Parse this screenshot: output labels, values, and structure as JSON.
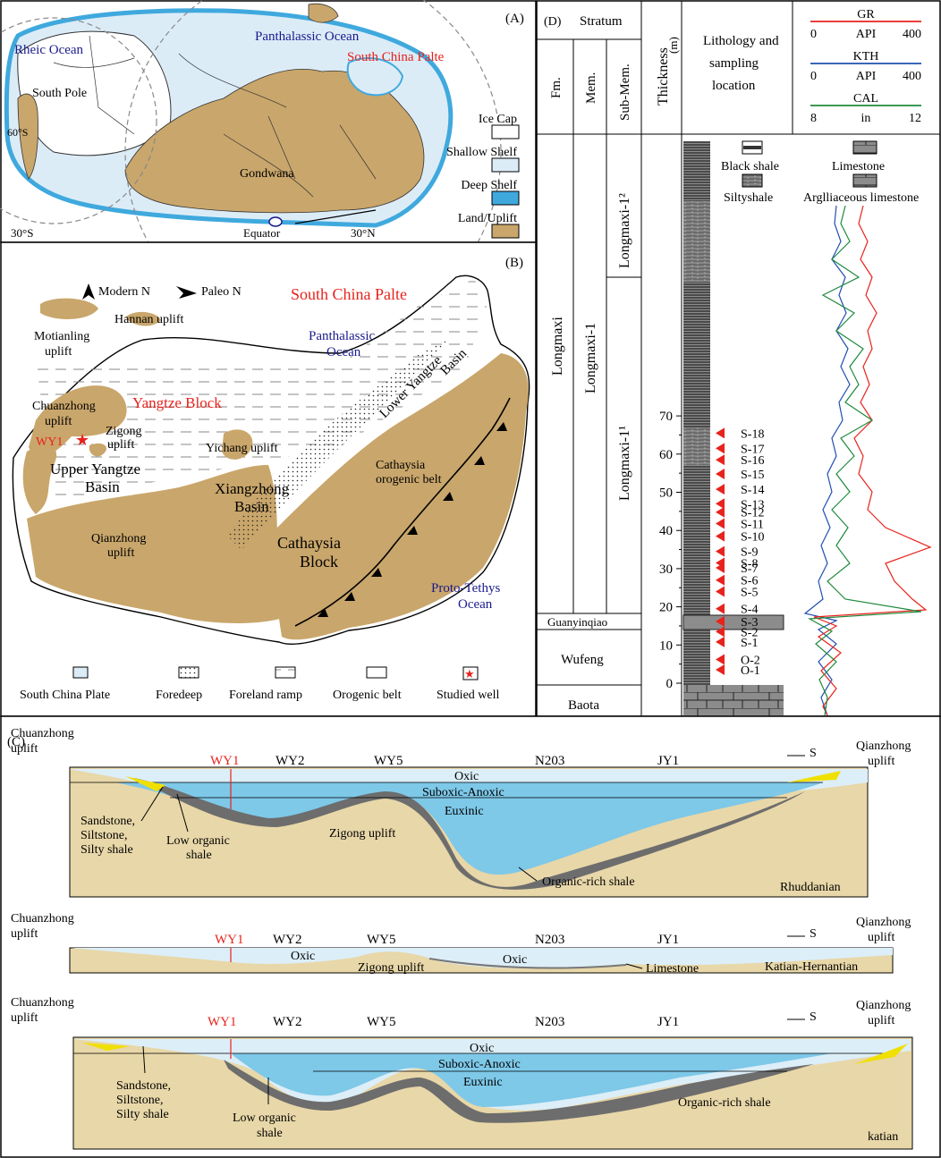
{
  "panelA": {
    "label": "(A)",
    "rheic_ocean": "Rheic Ocean",
    "panthalassic_ocean": "Panthalassic Ocean",
    "south_china_plate": "South China Palte",
    "south_pole": "South Pole",
    "gondwana": "Gondwana",
    "lat_60s": "60°S",
    "lat_30s": "30°S",
    "equator": "Equator",
    "lat_30n": "30°N",
    "legend": [
      {
        "label": "Ice Cap",
        "color": "#ffffff"
      },
      {
        "label": "Shallow Shelf",
        "color": "#dcecf7"
      },
      {
        "label": "Deep Shelf",
        "color": "#3fa9de"
      },
      {
        "label": "Land/Uplift",
        "color": "#c9a66b"
      }
    ]
  },
  "panelB": {
    "label": "(B)",
    "modern_n": "Modern N",
    "paleo_n": "Paleo N",
    "title": "South China Palte",
    "hannan": "Hannan uplift",
    "motianling_1": "Motianling",
    "motianling_2": "uplift",
    "panthalassic_1": "Panthalassic",
    "panthalassic_2": "Ocean",
    "lower_yangtze_1": "Lower Yangtze",
    "lower_yangtze_2": "Basin",
    "chuanzhong_1": "Chuanzhong",
    "chuanzhong_2": "uplift",
    "yangtze_block": "Yangtze Block",
    "wy1": "WY1",
    "zigong_1": "Zigong",
    "zigong_2": "uplift",
    "yichang": "Yichang uplift",
    "upper_yangtze_1": "Upper Yangtze",
    "upper_yangtze_2": "Basin",
    "xiangzhong_1": "Xiangzhong",
    "xiangzhong_2": "Basin",
    "cathaysia_orogen_1": "Cathaysia",
    "cathaysia_orogen_2": "orogenic belt",
    "qianzhong_1": "Qianzhong",
    "qianzhong_2": "uplift",
    "cathaysia_block_1": "Cathaysia",
    "cathaysia_block_2": "Block",
    "proto_tethys_1": "Proto-Tethys",
    "proto_tethys_2": "Ocean",
    "legend": [
      "South China Plate",
      "Foredeep",
      "Foreland ramp",
      "Orogenic belt",
      "Studied well"
    ]
  },
  "panelC": {
    "label": "(C)",
    "left_1": "Chuanzhong",
    "left_2": "uplift",
    "right_1": "Qianzhong",
    "right_2": "uplift",
    "south": "S",
    "wells": [
      "WY1",
      "WY2",
      "WY5",
      "N203",
      "JY1"
    ],
    "oxic": "Oxic",
    "suboxic": "Suboxic-Anoxic",
    "euxinic": "Euxinic",
    "zigong_uplift": "Zigong uplift",
    "organic_rich": "Organic-rich shale",
    "low_organic_1": "Low organic",
    "low_organic_2": "shale",
    "sandstone_1": "Sandstone,",
    "sandstone_2": "Siltstone,",
    "sandstone_3": "Silty shale",
    "limestone": "Limestone",
    "sections": [
      "Rhuddanian",
      "Katian-Hernantian",
      "katian"
    ]
  },
  "panelD": {
    "label": "(D)",
    "stratum": "Stratum",
    "fm": "Fm.",
    "mem": "Mem.",
    "submem": "Sub-Mem.",
    "thickness_1": "Thickness",
    "thickness_2": "(m)",
    "lith_1": "Lithology and",
    "lith_2": "sampling",
    "lith_3": "location",
    "logs": [
      {
        "name": "GR",
        "unit": "API",
        "min": "0",
        "max": "400",
        "color": "#e8221c"
      },
      {
        "name": "KTH",
        "unit": "API",
        "min": "0",
        "max": "400",
        "color": "#1f4fb0"
      },
      {
        "name": "CAL",
        "unit": "in",
        "min": "8",
        "max": "12",
        "color": "#1e8a3c"
      }
    ],
    "formations": [
      "Longmaxi",
      "Guanyinqiao",
      "Wufeng",
      "Baota"
    ],
    "member": "Longmaxi-1",
    "submembers": [
      "Longmaxi-1²",
      "Longmaxi-1¹"
    ],
    "depth_ticks": [
      "0",
      "10",
      "20",
      "30",
      "40",
      "50",
      "60",
      "70"
    ],
    "lith_legend": [
      "Black shale",
      "Siltyshale",
      "Limestone",
      "Arglliaceous limestone"
    ],
    "samples": [
      {
        "id": "S-18",
        "depth": 65.5
      },
      {
        "id": "S-17",
        "depth": 61.5
      },
      {
        "id": "S-16",
        "depth": 58.5
      },
      {
        "id": "S-15",
        "depth": 54.8
      },
      {
        "id": "S-14",
        "depth": 50.8
      },
      {
        "id": "S-13",
        "depth": 47.0
      },
      {
        "id": "S-12",
        "depth": 44.8
      },
      {
        "id": "S-11",
        "depth": 41.8
      },
      {
        "id": "S-10",
        "depth": 38.5
      },
      {
        "id": "S-9",
        "depth": 34.5
      },
      {
        "id": "S-8",
        "depth": 31.5
      },
      {
        "id": "S-7",
        "depth": 30.2
      },
      {
        "id": "S-6",
        "depth": 27.0
      },
      {
        "id": "S-5",
        "depth": 24.0
      },
      {
        "id": "S-4",
        "depth": 19.5
      },
      {
        "id": "S-3",
        "depth": 16.2
      },
      {
        "id": "S-2",
        "depth": 13.5
      },
      {
        "id": "S-1",
        "depth": 10.8
      },
      {
        "id": "O-2",
        "depth": 6.2
      },
      {
        "id": "O-1",
        "depth": 3.5
      }
    ]
  }
}
